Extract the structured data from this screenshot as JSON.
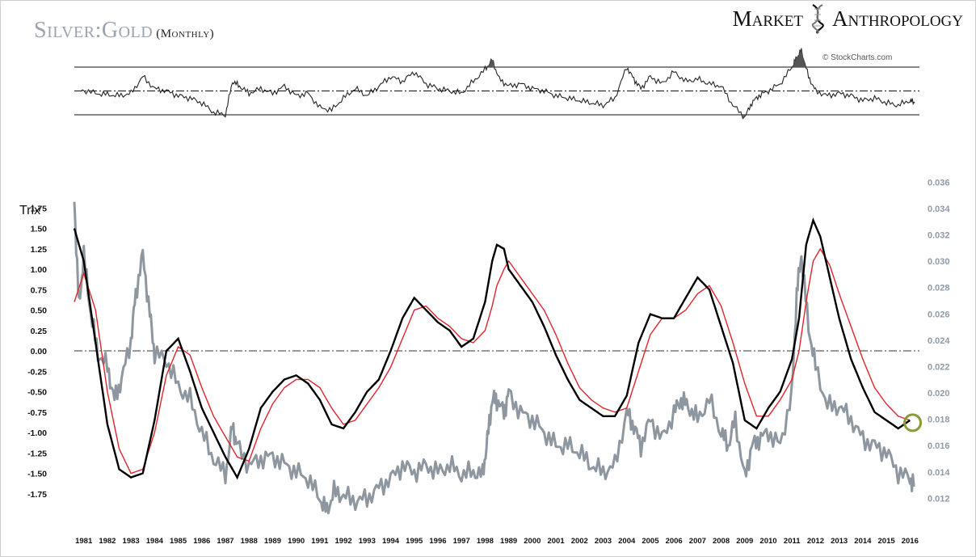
{
  "header": {
    "title": "Silver:Gold",
    "subtitle": "(Monthly)",
    "brand_left": "Market",
    "brand_right": "Anthropology",
    "brand_icon": "dna-helix-icon",
    "source": "© StockCharts.com"
  },
  "colors": {
    "ratio": "#8e979f",
    "trix": "#000000",
    "signal": "#e0242b",
    "highlight": "#8a9a3a",
    "oscillator_fill": "#555555"
  },
  "chart_data": [
    {
      "type": "line",
      "title": "",
      "note": "upper oscillator panel with upper/lower bands and dash-dot midline",
      "x": [
        1980.9,
        1981.5,
        1982.0,
        1982.5,
        1983.0,
        1983.5,
        1984.0,
        1984.5,
        1985.0,
        1985.5,
        1986.0,
        1986.5,
        1987.0,
        1987.3,
        1987.6,
        1988.0,
        1988.5,
        1989.0,
        1989.5,
        1990.0,
        1990.5,
        1991.0,
        1991.5,
        1992.0,
        1992.5,
        1993.0,
        1993.5,
        1994.0,
        1994.5,
        1995.0,
        1995.5,
        1996.0,
        1996.5,
        1997.0,
        1997.5,
        1998.0,
        1998.3,
        1998.6,
        1999.0,
        1999.5,
        2000.0,
        2000.5,
        2001.0,
        2001.5,
        2002.0,
        2002.5,
        2003.0,
        2003.5,
        2004.0,
        2004.3,
        2004.6,
        2005.0,
        2005.5,
        2006.0,
        2006.5,
        2007.0,
        2007.5,
        2008.0,
        2008.5,
        2009.0,
        2009.3,
        2009.6,
        2010.0,
        2010.5,
        2011.0,
        2011.2,
        2011.4,
        2011.7,
        2012.0,
        2012.5,
        2013.0,
        2013.5,
        2014.0,
        2014.5,
        2015.0,
        2015.5,
        2016.0,
        2016.2
      ],
      "y": [
        0.05,
        -0.1,
        -0.15,
        -0.2,
        -0.1,
        0.6,
        0.1,
        0.0,
        -0.2,
        -0.3,
        -0.5,
        -0.9,
        -1.0,
        0.4,
        0.2,
        -0.1,
        0.1,
        -0.1,
        0.2,
        -0.2,
        -0.1,
        -0.7,
        -0.8,
        -0.3,
        0.1,
        -0.2,
        0.2,
        0.6,
        0.4,
        0.8,
        0.3,
        0.1,
        0.0,
        -0.1,
        0.4,
        0.9,
        1.3,
        0.5,
        0.2,
        0.3,
        0.1,
        0.0,
        -0.2,
        -0.3,
        -0.4,
        -0.5,
        -0.6,
        -0.3,
        1.0,
        0.5,
        0.1,
        0.6,
        0.3,
        0.8,
        0.4,
        0.5,
        0.3,
        0.2,
        -0.6,
        -1.1,
        -0.5,
        -0.2,
        0.0,
        0.3,
        1.0,
        1.4,
        1.7,
        0.6,
        0.0,
        -0.2,
        -0.1,
        -0.2,
        -0.4,
        -0.3,
        -0.5,
        -0.6,
        -0.4,
        -0.5
      ],
      "ylim": [
        -1.0,
        1.0
      ],
      "bands": [
        1.0,
        0.0,
        -1.0
      ]
    },
    {
      "type": "line",
      "title": "",
      "ylabel": "Trix",
      "xlim": [
        1980.6,
        2016.4
      ],
      "y_ticks_left": [
        "1.75",
        "1.50",
        "1.25",
        "1.00",
        "0.75",
        "0.50",
        "0.25",
        "0.00",
        "-0.25",
        "-0.50",
        "-0.75",
        "-1.00",
        "-1.25",
        "-1.50",
        "-1.75"
      ],
      "y_ticks_right": [
        "0.036",
        "0.034",
        "0.032",
        "0.030",
        "0.028",
        "0.026",
        "0.024",
        "0.022",
        "0.020",
        "0.018",
        "0.016",
        "0.014",
        "0.012"
      ],
      "x_ticks": [
        "1981",
        "1982",
        "1983",
        "1984",
        "1985",
        "1986",
        "1987",
        "1988",
        "1989",
        "1990",
        "1991",
        "1992",
        "1993",
        "1994",
        "1995",
        "1996",
        "1997",
        "1998",
        "1989",
        "2000",
        "2001",
        "2002",
        "2003",
        "2004",
        "2005",
        "2006",
        "2007",
        "2008",
        "2009",
        "2010",
        "2011",
        "2012",
        "2013",
        "2014",
        "2015",
        "2016"
      ],
      "ylim_left": [
        -2.0,
        2.1
      ],
      "ylim_right": [
        0.0108,
        0.0362
      ],
      "zero_line": 0.0,
      "series": [
        {
          "role": "ratio",
          "axis": "right",
          "x": [
            1980.6,
            1980.8,
            1981.0,
            1981.3,
            1981.6,
            1982.0,
            1982.3,
            1982.6,
            1983.0,
            1983.2,
            1983.5,
            1983.8,
            1984.0,
            1984.5,
            1985.0,
            1985.5,
            1986.0,
            1986.5,
            1987.0,
            1987.3,
            1987.5,
            1988.0,
            1988.5,
            1989.0,
            1989.5,
            1990.0,
            1990.5,
            1991.0,
            1991.3,
            1991.6,
            1992.0,
            1992.5,
            1993.0,
            1993.5,
            1994.0,
            1994.5,
            1995.0,
            1995.5,
            1996.0,
            1996.5,
            1997.0,
            1997.5,
            1997.9,
            1998.1,
            1998.3,
            1998.5,
            1998.8,
            1999.0,
            1999.5,
            2000.0,
            2000.5,
            2001.0,
            2001.5,
            2002.0,
            2002.5,
            2003.0,
            2003.5,
            2004.0,
            2004.3,
            2004.6,
            2005.0,
            2005.5,
            2006.0,
            2006.3,
            2006.6,
            2007.0,
            2007.5,
            2008.0,
            2008.3,
            2008.6,
            2009.0,
            2009.3,
            2009.6,
            2010.0,
            2010.5,
            2011.0,
            2011.2,
            2011.4,
            2011.7,
            2012.0,
            2012.5,
            2013.0,
            2013.5,
            2014.0,
            2014.5,
            2015.0,
            2015.5,
            2016.0,
            2016.2
          ],
          "y": [
            0.0345,
            0.0265,
            0.0305,
            0.026,
            0.023,
            0.022,
            0.0195,
            0.021,
            0.024,
            0.0275,
            0.0305,
            0.026,
            0.023,
            0.0225,
            0.0205,
            0.0195,
            0.017,
            0.015,
            0.0138,
            0.0175,
            0.016,
            0.0145,
            0.015,
            0.0152,
            0.0146,
            0.014,
            0.0135,
            0.012,
            0.011,
            0.0125,
            0.0122,
            0.0118,
            0.012,
            0.0128,
            0.0135,
            0.0145,
            0.014,
            0.0145,
            0.014,
            0.0145,
            0.0138,
            0.014,
            0.0138,
            0.0165,
            0.0195,
            0.0195,
            0.0185,
            0.02,
            0.0185,
            0.018,
            0.017,
            0.016,
            0.016,
            0.0155,
            0.0145,
            0.014,
            0.0145,
            0.0185,
            0.0175,
            0.016,
            0.018,
            0.0165,
            0.0185,
            0.0195,
            0.019,
            0.018,
            0.0195,
            0.017,
            0.016,
            0.018,
            0.0135,
            0.016,
            0.0165,
            0.017,
            0.016,
            0.02,
            0.0275,
            0.0305,
            0.025,
            0.022,
            0.019,
            0.019,
            0.018,
            0.0165,
            0.016,
            0.0155,
            0.014,
            0.0135,
            0.013
          ]
        },
        {
          "role": "trix",
          "axis": "left",
          "x": [
            1980.6,
            1981.0,
            1981.5,
            1982.0,
            1982.5,
            1983.0,
            1983.5,
            1984.0,
            1984.5,
            1985.0,
            1985.5,
            1986.0,
            1986.5,
            1987.0,
            1987.5,
            1988.0,
            1988.5,
            1989.0,
            1989.5,
            1990.0,
            1990.5,
            1991.0,
            1991.5,
            1992.0,
            1992.5,
            1993.0,
            1993.5,
            1994.0,
            1994.5,
            1995.0,
            1995.5,
            1996.0,
            1996.5,
            1997.0,
            1997.5,
            1998.0,
            1998.3,
            1998.5,
            1998.8,
            1999.0,
            1999.5,
            2000.0,
            2000.5,
            2001.0,
            2001.5,
            2002.0,
            2002.5,
            2003.0,
            2003.5,
            2004.0,
            2004.5,
            2005.0,
            2005.5,
            2006.0,
            2006.5,
            2007.0,
            2007.5,
            2008.0,
            2008.5,
            2009.0,
            2009.5,
            2010.0,
            2010.5,
            2011.0,
            2011.3,
            2011.6,
            2011.9,
            2012.2,
            2012.6,
            2013.0,
            2013.5,
            2014.0,
            2014.5,
            2015.0,
            2015.5,
            2016.0
          ],
          "y": [
            1.5,
            1.1,
            0.1,
            -0.9,
            -1.45,
            -1.55,
            -1.5,
            -0.85,
            0.0,
            0.15,
            -0.25,
            -0.7,
            -1.0,
            -1.3,
            -1.55,
            -1.2,
            -0.7,
            -0.5,
            -0.35,
            -0.3,
            -0.4,
            -0.6,
            -0.9,
            -0.95,
            -0.75,
            -0.5,
            -0.35,
            0.0,
            0.4,
            0.65,
            0.5,
            0.35,
            0.25,
            0.05,
            0.15,
            0.6,
            1.1,
            1.3,
            1.25,
            1.0,
            0.8,
            0.6,
            0.3,
            -0.05,
            -0.35,
            -0.6,
            -0.7,
            -0.8,
            -0.8,
            -0.55,
            0.1,
            0.45,
            0.4,
            0.4,
            0.65,
            0.9,
            0.75,
            0.3,
            -0.15,
            -0.85,
            -0.95,
            -0.7,
            -0.5,
            -0.1,
            0.4,
            1.3,
            1.6,
            1.4,
            0.9,
            0.4,
            -0.1,
            -0.45,
            -0.75,
            -0.85,
            -0.95,
            -0.85
          ]
        },
        {
          "role": "signal",
          "axis": "left",
          "x": [
            1980.6,
            1981.0,
            1981.5,
            1982.0,
            1982.5,
            1983.0,
            1983.5,
            1984.0,
            1984.5,
            1985.0,
            1985.5,
            1986.0,
            1986.5,
            1987.0,
            1987.5,
            1988.0,
            1988.5,
            1989.0,
            1989.5,
            1990.0,
            1990.5,
            1991.0,
            1991.5,
            1992.0,
            1992.5,
            1993.0,
            1993.5,
            1994.0,
            1994.5,
            1995.0,
            1995.5,
            1996.0,
            1996.5,
            1997.0,
            1997.5,
            1998.0,
            1998.3,
            1998.5,
            1998.8,
            1999.0,
            1999.5,
            2000.0,
            2000.5,
            2001.0,
            2001.5,
            2002.0,
            2002.5,
            2003.0,
            2003.5,
            2004.0,
            2004.5,
            2005.0,
            2005.5,
            2006.0,
            2006.5,
            2007.0,
            2007.5,
            2008.0,
            2008.5,
            2009.0,
            2009.5,
            2010.0,
            2010.5,
            2011.0,
            2011.3,
            2011.6,
            2011.9,
            2012.2,
            2012.6,
            2013.0,
            2013.5,
            2014.0,
            2014.5,
            2015.0,
            2015.5,
            2016.0
          ],
          "y": [
            0.6,
            0.95,
            0.5,
            -0.5,
            -1.2,
            -1.5,
            -1.45,
            -1.0,
            -0.3,
            0.05,
            -0.05,
            -0.45,
            -0.8,
            -1.05,
            -1.3,
            -1.35,
            -0.95,
            -0.65,
            -0.45,
            -0.35,
            -0.35,
            -0.45,
            -0.7,
            -0.9,
            -0.85,
            -0.65,
            -0.45,
            -0.2,
            0.15,
            0.5,
            0.55,
            0.4,
            0.3,
            0.15,
            0.1,
            0.25,
            0.55,
            0.8,
            1.0,
            1.1,
            0.9,
            0.7,
            0.5,
            0.2,
            -0.15,
            -0.45,
            -0.6,
            -0.7,
            -0.75,
            -0.7,
            -0.25,
            0.2,
            0.4,
            0.4,
            0.5,
            0.7,
            0.8,
            0.55,
            0.1,
            -0.4,
            -0.8,
            -0.8,
            -0.6,
            -0.35,
            0.0,
            0.6,
            1.1,
            1.25,
            1.05,
            0.7,
            0.3,
            -0.1,
            -0.45,
            -0.65,
            -0.8,
            -0.85
          ]
        }
      ],
      "highlight": {
        "x": 2015.7,
        "y": -0.88
      }
    }
  ]
}
